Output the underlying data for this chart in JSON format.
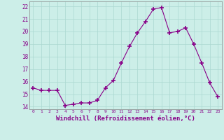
{
  "x": [
    0,
    1,
    2,
    3,
    4,
    5,
    6,
    7,
    8,
    9,
    10,
    11,
    12,
    13,
    14,
    15,
    16,
    17,
    18,
    19,
    20,
    21,
    22,
    23
  ],
  "y": [
    15.5,
    15.3,
    15.3,
    15.3,
    14.1,
    14.2,
    14.3,
    14.3,
    14.5,
    15.5,
    16.1,
    17.5,
    18.8,
    19.9,
    20.8,
    21.8,
    21.9,
    19.9,
    20.0,
    20.3,
    19.0,
    17.5,
    15.9,
    14.8
  ],
  "line_color": "#880088",
  "marker": "+",
  "marker_size": 4,
  "bg_color": "#cceee8",
  "grid_color": "#aad8d0",
  "xlabel": "Windchill (Refroidissement éolien,°C)",
  "xtick_labels": [
    "0",
    "1",
    "2",
    "3",
    "4",
    "5",
    "6",
    "7",
    "8",
    "9",
    "10",
    "11",
    "12",
    "13",
    "14",
    "15",
    "16",
    "17",
    "18",
    "19",
    "20",
    "21",
    "22",
    "23"
  ],
  "ylim": [
    13.8,
    22.4
  ],
  "yticks": [
    14,
    15,
    16,
    17,
    18,
    19,
    20,
    21,
    22
  ]
}
